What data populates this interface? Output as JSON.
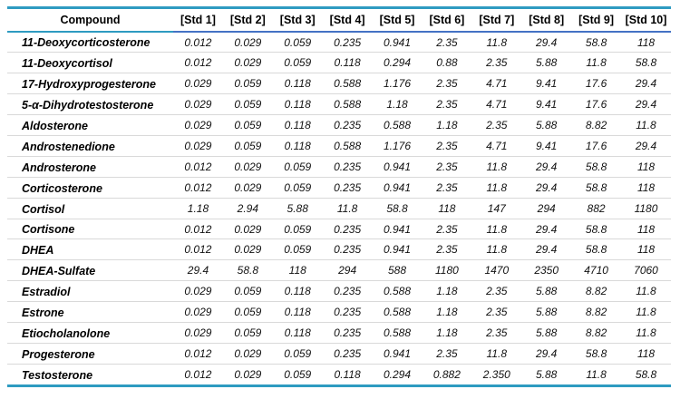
{
  "colors": {
    "accent_teal": "#2E9BC1",
    "accent_blue": "#4472C4",
    "row_separator": "#D9D9D9"
  },
  "table": {
    "columns": [
      "Compound",
      "[Std 1]",
      "[Std 2]",
      "[Std 3]",
      "[Std 4]",
      "[Std 5]",
      "[Std 6]",
      "[Std 7]",
      "[Std 8]",
      "[Std 9]",
      "[Std 10]"
    ],
    "rows": [
      {
        "compound": "11-Deoxycorticosterone",
        "values": [
          "0.012",
          "0.029",
          "0.059",
          "0.235",
          "0.941",
          "2.35",
          "11.8",
          "29.4",
          "58.8",
          "118"
        ]
      },
      {
        "compound": "11-Deoxycortisol",
        "values": [
          "0.012",
          "0.029",
          "0.059",
          "0.118",
          "0.294",
          "0.88",
          "2.35",
          "5.88",
          "11.8",
          "58.8"
        ]
      },
      {
        "compound": "17-Hydroxyprogesterone",
        "values": [
          "0.029",
          "0.059",
          "0.118",
          "0.588",
          "1.176",
          "2.35",
          "4.71",
          "9.41",
          "17.6",
          "29.4"
        ]
      },
      {
        "compound": "5-α-Dihydrotestosterone",
        "values": [
          "0.029",
          "0.059",
          "0.118",
          "0.588",
          "1.18",
          "2.35",
          "4.71",
          "9.41",
          "17.6",
          "29.4"
        ]
      },
      {
        "compound": "Aldosterone",
        "values": [
          "0.029",
          "0.059",
          "0.118",
          "0.235",
          "0.588",
          "1.18",
          "2.35",
          "5.88",
          "8.82",
          "11.8"
        ]
      },
      {
        "compound": "Androstenedione",
        "values": [
          "0.029",
          "0.059",
          "0.118",
          "0.588",
          "1.176",
          "2.35",
          "4.71",
          "9.41",
          "17.6",
          "29.4"
        ]
      },
      {
        "compound": "Androsterone",
        "values": [
          "0.012",
          "0.029",
          "0.059",
          "0.235",
          "0.941",
          "2.35",
          "11.8",
          "29.4",
          "58.8",
          "118"
        ]
      },
      {
        "compound": "Corticosterone",
        "values": [
          "0.012",
          "0.029",
          "0.059",
          "0.235",
          "0.941",
          "2.35",
          "11.8",
          "29.4",
          "58.8",
          "118"
        ]
      },
      {
        "compound": "Cortisol",
        "values": [
          "1.18",
          "2.94",
          "5.88",
          "11.8",
          "58.8",
          "118",
          "147",
          "294",
          "882",
          "1180"
        ]
      },
      {
        "compound": "Cortisone",
        "values": [
          "0.012",
          "0.029",
          "0.059",
          "0.235",
          "0.941",
          "2.35",
          "11.8",
          "29.4",
          "58.8",
          "118"
        ]
      },
      {
        "compound": "DHEA",
        "values": [
          "0.012",
          "0.029",
          "0.059",
          "0.235",
          "0.941",
          "2.35",
          "11.8",
          "29.4",
          "58.8",
          "118"
        ]
      },
      {
        "compound": "DHEA-Sulfate",
        "values": [
          "29.4",
          "58.8",
          "118",
          "294",
          "588",
          "1180",
          "1470",
          "2350",
          "4710",
          "7060"
        ]
      },
      {
        "compound": "Estradiol",
        "values": [
          "0.029",
          "0.059",
          "0.118",
          "0.235",
          "0.588",
          "1.18",
          "2.35",
          "5.88",
          "8.82",
          "11.8"
        ]
      },
      {
        "compound": "Estrone",
        "values": [
          "0.029",
          "0.059",
          "0.118",
          "0.235",
          "0.588",
          "1.18",
          "2.35",
          "5.88",
          "8.82",
          "11.8"
        ]
      },
      {
        "compound": "Etiocholanolone",
        "values": [
          "0.029",
          "0.059",
          "0.118",
          "0.235",
          "0.588",
          "1.18",
          "2.35",
          "5.88",
          "8.82",
          "11.8"
        ]
      },
      {
        "compound": "Progesterone",
        "values": [
          "0.012",
          "0.029",
          "0.059",
          "0.235",
          "0.941",
          "2.35",
          "11.8",
          "29.4",
          "58.8",
          "118"
        ]
      },
      {
        "compound": "Testosterone",
        "values": [
          "0.012",
          "0.029",
          "0.059",
          "0.118",
          "0.294",
          "0.882",
          "2.350",
          "5.88",
          "11.8",
          "58.8"
        ]
      }
    ]
  }
}
